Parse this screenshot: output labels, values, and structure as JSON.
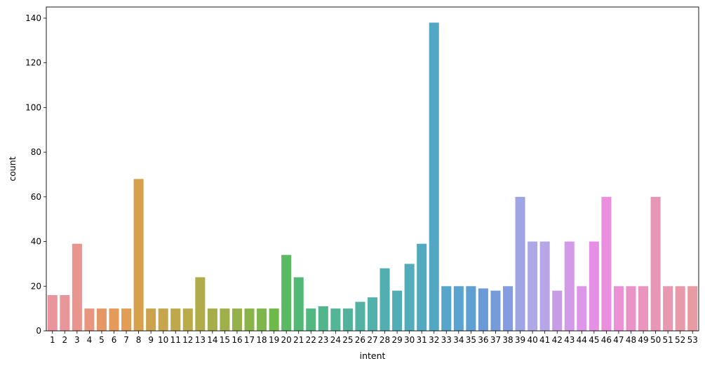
{
  "chart_data": {
    "type": "bar",
    "xlabel": "intent",
    "ylabel": "count",
    "ylim": [
      0,
      145
    ],
    "yticks": [
      0,
      20,
      40,
      60,
      80,
      100,
      120,
      140
    ],
    "grid": false,
    "categories": [
      "1",
      "2",
      "3",
      "4",
      "5",
      "6",
      "7",
      "8",
      "9",
      "10",
      "11",
      "12",
      "13",
      "14",
      "15",
      "16",
      "17",
      "18",
      "19",
      "20",
      "21",
      "22",
      "23",
      "24",
      "25",
      "26",
      "27",
      "28",
      "29",
      "30",
      "31",
      "32",
      "33",
      "34",
      "35",
      "36",
      "37",
      "38",
      "39",
      "40",
      "41",
      "42",
      "43",
      "44",
      "45",
      "46",
      "47",
      "48",
      "49",
      "50",
      "51",
      "52",
      "53"
    ],
    "values": [
      16,
      16,
      39,
      10,
      10,
      10,
      10,
      68,
      10,
      10,
      10,
      10,
      24,
      10,
      10,
      10,
      10,
      10,
      10,
      34,
      24,
      10,
      11,
      10,
      10,
      13,
      15,
      28,
      18,
      30,
      39,
      138,
      20,
      20,
      20,
      19,
      18,
      20,
      60,
      40,
      40,
      18,
      40,
      20,
      40,
      60,
      20,
      20,
      20,
      60,
      20,
      20,
      20
    ],
    "colors": [
      "#e8959c",
      "#e8969a",
      "#e8958d",
      "#e8967d",
      "#e59866",
      "#e59a5a",
      "#e29d55",
      "#d6a04c",
      "#cca24c",
      "#c5a64c",
      "#bfa84b",
      "#b9aa4a",
      "#b0ac4a",
      "#a6ae4a",
      "#9fb04a",
      "#95b24a",
      "#8ab449",
      "#7db74b",
      "#6fb94b",
      "#5aba64",
      "#52b876",
      "#52b781",
      "#52b58c",
      "#52b595",
      "#52b39d",
      "#52b2a4",
      "#52b1aa",
      "#52afb1",
      "#52aeb6",
      "#52acbb",
      "#52aac0",
      "#52a8c4",
      "#58a5cb",
      "#5aa2cf",
      "#5e9fd4",
      "#6a9bd8",
      "#769bd9",
      "#859ce0",
      "#9da5e5",
      "#aea9e6",
      "#b8a5e8",
      "#c69de5",
      "#d39ae8",
      "#de96ea",
      "#e590e4",
      "#ea8fdd",
      "#ea92d5",
      "#ea93c8",
      "#ea94be",
      "#e896b5",
      "#e898b1",
      "#e89aaa",
      "#e89ba3"
    ]
  }
}
